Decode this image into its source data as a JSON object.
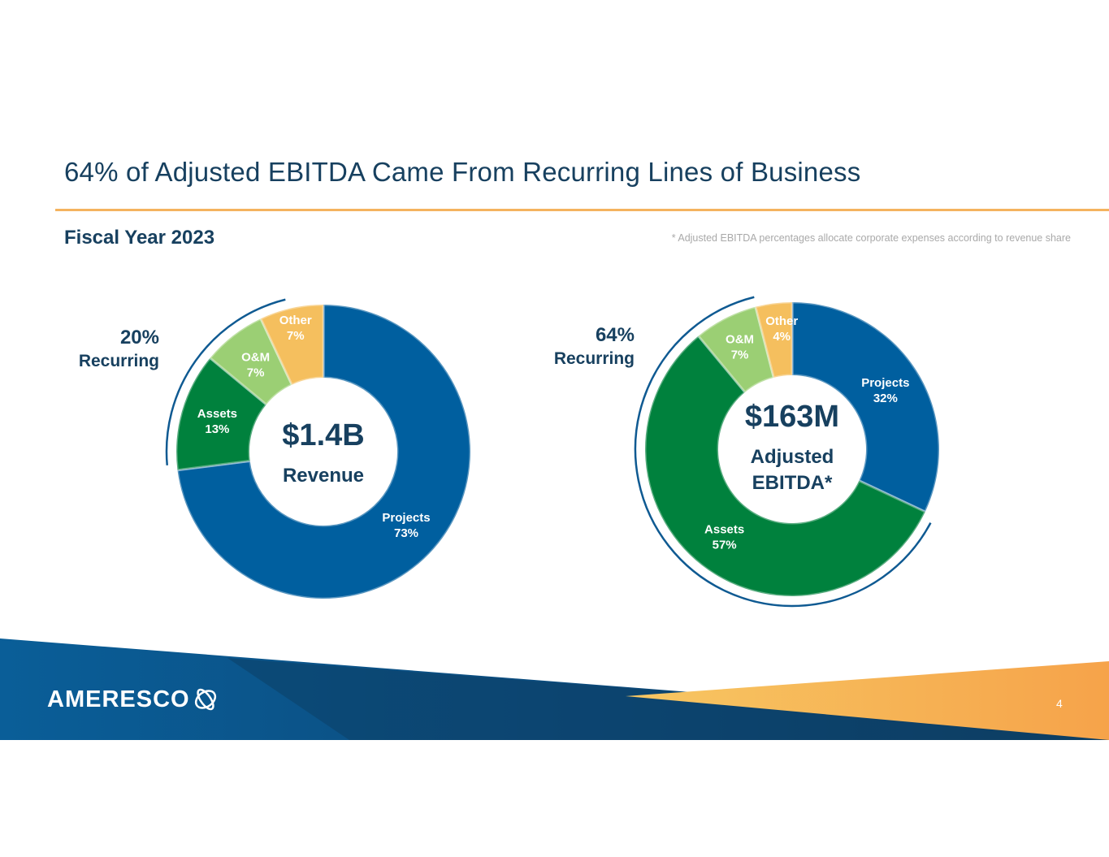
{
  "page": {
    "title": "64% of Adjusted EBITDA Came From Recurring Lines of Business",
    "subtitle": "Fiscal Year 2023",
    "footnote": "* Adjusted EBITDA percentages allocate corporate expenses according to revenue share",
    "logo_text": "AMERESCO",
    "page_number": "4"
  },
  "colors": {
    "projects": "#005f9f",
    "assets": "#00813d",
    "om": "#9bcf74",
    "other": "#f5bf5e",
    "title": "#17405f",
    "rule": "#f4b35f"
  },
  "chart_data": [
    {
      "type": "pie",
      "style": "donut",
      "center_value": "$1.4B",
      "center_label": [
        "Revenue"
      ],
      "recurring_pct": "20%",
      "recurring_label": "Recurring",
      "slices": [
        {
          "name": "Projects",
          "value": 73,
          "label": "73%"
        },
        {
          "name": "Assets",
          "value": 13,
          "label": "13%"
        },
        {
          "name": "O&M",
          "value": 7,
          "label": "7%"
        },
        {
          "name": "Other",
          "value": 7,
          "label": "7%"
        }
      ]
    },
    {
      "type": "pie",
      "style": "donut",
      "center_value": "$163M",
      "center_label": [
        "Adjusted",
        "EBITDA*"
      ],
      "recurring_pct": "64%",
      "recurring_label": "Recurring",
      "slices": [
        {
          "name": "Projects",
          "value": 32,
          "label": "32%"
        },
        {
          "name": "Assets",
          "value": 57,
          "label": "57%"
        },
        {
          "name": "O&M",
          "value": 7,
          "label": "7%"
        },
        {
          "name": "Other",
          "value": 4,
          "label": "4%"
        }
      ]
    }
  ]
}
